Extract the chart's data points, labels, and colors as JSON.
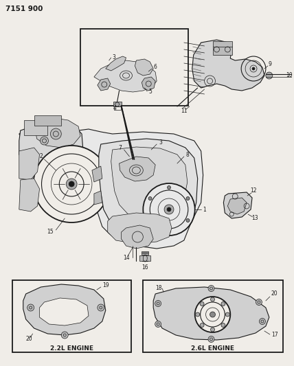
{
  "title": "7151 900",
  "bg": "#f0ede8",
  "lc": "#1a1a1a",
  "gray": "#888888",
  "lgray": "#cccccc",
  "engine_22": "2.2L ENGINE",
  "engine_26": "2.6L ENGINE",
  "figw": 4.28,
  "figh": 5.33,
  "dpi": 100,
  "xlim": [
    0,
    428
  ],
  "ylim": [
    0,
    533
  ]
}
